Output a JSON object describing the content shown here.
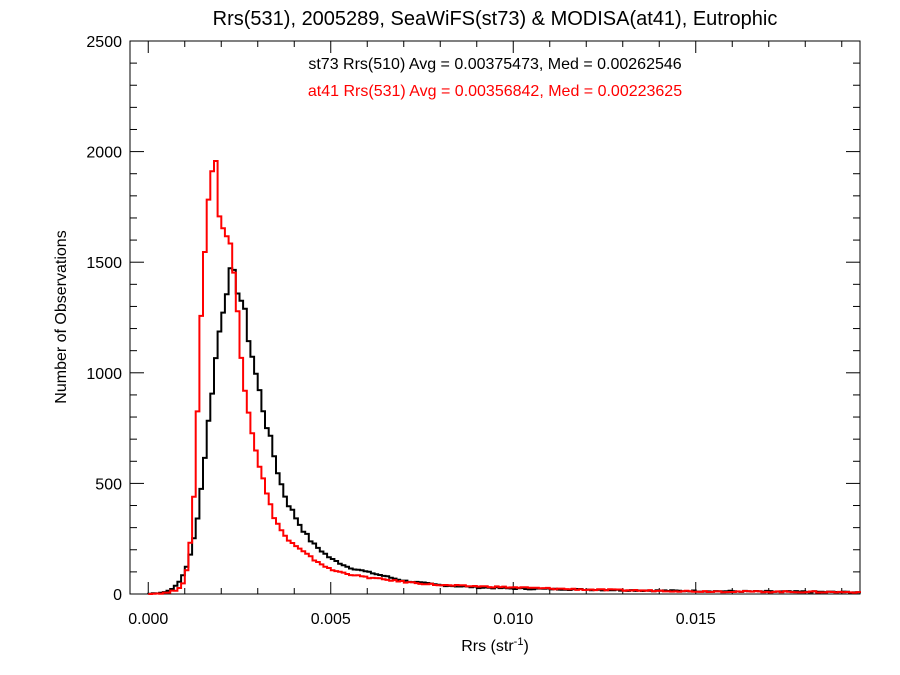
{
  "chart_data": {
    "type": "line",
    "title": "Rrs(531), 2005289, SeaWiFS(st73) & MODISA(at41), Eutrophic",
    "xlabel_main": "Rrs (str",
    "xlabel_sup": "-1",
    "xlabel_end": ")",
    "ylabel": "Number of Observations",
    "xlim": [
      -0.0005,
      0.0195
    ],
    "ylim": [
      0,
      2500
    ],
    "x_ticks": [
      0.0,
      0.005,
      0.01,
      0.015
    ],
    "x_tick_labels": [
      "0.000",
      "0.005",
      "0.010",
      "0.015"
    ],
    "y_ticks": [
      0,
      500,
      1000,
      1500,
      2000,
      2500
    ],
    "y_tick_labels": [
      "0",
      "500",
      "1000",
      "1500",
      "2000",
      "2500"
    ],
    "grid": false,
    "legend": "top-center",
    "annotations": [
      {
        "text": "st73 Rrs(510) Avg = 0.00375473, Med = 0.00262546",
        "color": "#000000"
      },
      {
        "text": "at41 Rrs(531) Avg = 0.00356842, Med = 0.00223625",
        "color": "#ff0000"
      }
    ],
    "series": [
      {
        "color": "#000000",
        "x": [
          0.0,
          0.0005,
          0.0008,
          0.001,
          0.0012,
          0.0014,
          0.0016,
          0.0018,
          0.002,
          0.0022,
          0.0024,
          0.0026,
          0.0028,
          0.003,
          0.0032,
          0.0034,
          0.0036,
          0.0038,
          0.004,
          0.0042,
          0.0045,
          0.005,
          0.0055,
          0.006,
          0.0065,
          0.007,
          0.008,
          0.009,
          0.01,
          0.012,
          0.014,
          0.016,
          0.018,
          0.0195
        ],
        "y": [
          0,
          10,
          40,
          100,
          200,
          400,
          700,
          1000,
          1250,
          1440,
          1420,
          1300,
          1120,
          950,
          800,
          660,
          520,
          420,
          360,
          300,
          230,
          160,
          120,
          100,
          80,
          60,
          40,
          30,
          25,
          20,
          15,
          12,
          10,
          8
        ]
      },
      {
        "color": "#ff0000",
        "x": [
          0.0,
          0.0005,
          0.0008,
          0.001,
          0.0011,
          0.0012,
          0.0013,
          0.0014,
          0.0015,
          0.0016,
          0.0017,
          0.0018,
          0.0019,
          0.002,
          0.0021,
          0.0022,
          0.0023,
          0.0024,
          0.0025,
          0.0026,
          0.0028,
          0.003,
          0.0032,
          0.0034,
          0.0036,
          0.0038,
          0.004,
          0.0045,
          0.005,
          0.0055,
          0.006,
          0.007,
          0.008,
          0.01,
          0.012,
          0.015,
          0.0195
        ],
        "y": [
          0,
          5,
          20,
          60,
          150,
          300,
          600,
          1050,
          1450,
          1700,
          1880,
          1990,
          1850,
          1660,
          1650,
          1600,
          1520,
          1370,
          1200,
          1000,
          780,
          620,
          480,
          370,
          300,
          250,
          220,
          160,
          110,
          90,
          75,
          55,
          40,
          30,
          20,
          12,
          8
        ]
      }
    ]
  }
}
